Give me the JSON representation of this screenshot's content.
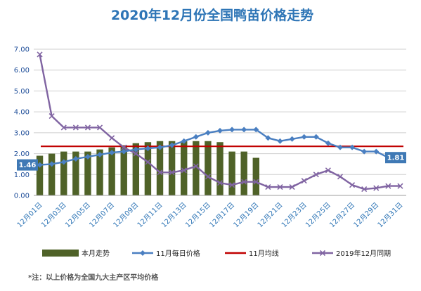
{
  "chart_data": {
    "type": "bar",
    "title": "2020年12月份全国鸭苗价格走势",
    "ylim": [
      0,
      7
    ],
    "yticks": [
      "0.00",
      "1.00",
      "2.00",
      "3.00",
      "4.00",
      "5.00",
      "6.00",
      "7.00"
    ],
    "categories": [
      "12月01日",
      "12月02日",
      "12月03日",
      "12月04日",
      "12月05日",
      "12月06日",
      "12月07日",
      "12月08日",
      "12月09日",
      "12月10日",
      "12月11日",
      "12月12日",
      "12月13日",
      "12月14日",
      "12月15日",
      "12月16日",
      "12月17日",
      "12月18日",
      "12月19日",
      "12月20日",
      "12月21日",
      "12月22日",
      "12月23日",
      "12月24日",
      "12月25日",
      "12月26日",
      "12月27日",
      "12月28日",
      "12月29日",
      "12月30日",
      "12月31日"
    ],
    "xtick_labels": [
      "12月01日",
      "",
      "12月03日",
      "",
      "12月05日",
      "",
      "12月07日",
      "",
      "12月09日",
      "",
      "12月11日",
      "",
      "12月13日",
      "",
      "12月15日",
      "",
      "12月17日",
      "",
      "12月19日",
      "",
      "12月21日",
      "",
      "12月23日",
      "",
      "12月25日",
      "",
      "12月27日",
      "",
      "12月29日",
      "",
      "12月31日"
    ],
    "grid": true,
    "legend_position": "bottom",
    "series": [
      {
        "name": "本月走势",
        "type": "bar",
        "color": "#4f6228",
        "values": [
          1.9,
          2.0,
          2.1,
          2.1,
          2.1,
          2.2,
          2.3,
          2.4,
          2.5,
          2.55,
          2.6,
          2.6,
          2.6,
          2.6,
          2.6,
          2.55,
          2.1,
          2.1,
          1.8,
          null,
          null,
          null,
          null,
          null,
          null,
          null,
          null,
          null,
          null,
          null,
          null
        ]
      },
      {
        "name": "11月每日价格",
        "type": "line",
        "marker": "diamond",
        "color": "#4a7fc1",
        "values": [
          1.46,
          1.5,
          1.6,
          1.75,
          1.85,
          1.95,
          2.05,
          2.1,
          2.2,
          2.25,
          2.3,
          2.4,
          2.6,
          2.8,
          3.0,
          3.1,
          3.15,
          3.15,
          3.15,
          2.75,
          2.6,
          2.7,
          2.8,
          2.8,
          2.5,
          2.3,
          2.3,
          2.1,
          2.1,
          1.81,
          1.81
        ]
      },
      {
        "name": "11月均线",
        "type": "line",
        "marker": "none",
        "color": "#c00000",
        "values": [
          2.35,
          2.35,
          2.35,
          2.35,
          2.35,
          2.35,
          2.35,
          2.35,
          2.35,
          2.35,
          2.35,
          2.35,
          2.35,
          2.35,
          2.35,
          2.35,
          2.35,
          2.35,
          2.35,
          2.35,
          2.35,
          2.35,
          2.35,
          2.35,
          2.35,
          2.35,
          2.35,
          2.35,
          2.35,
          2.35,
          2.35
        ]
      },
      {
        "name": "2019年12月同期",
        "type": "line",
        "marker": "x",
        "color": "#8064a2",
        "values": [
          6.75,
          3.8,
          3.25,
          3.25,
          3.25,
          3.25,
          2.75,
          2.3,
          2.0,
          1.6,
          1.1,
          1.1,
          1.2,
          1.4,
          0.9,
          0.6,
          0.5,
          0.65,
          0.65,
          0.4,
          0.4,
          0.4,
          0.7,
          1.0,
          1.2,
          0.9,
          0.5,
          0.3,
          0.35,
          0.45,
          0.45
        ]
      }
    ],
    "annotations": [
      {
        "text": "1.46",
        "category": "12月01日",
        "series": "11月每日价格"
      },
      {
        "text": "1.81",
        "category": "12月30日",
        "series": "11月每日价格"
      }
    ],
    "footnote": "*注：以上价格为全国九大主产区平均价格"
  }
}
